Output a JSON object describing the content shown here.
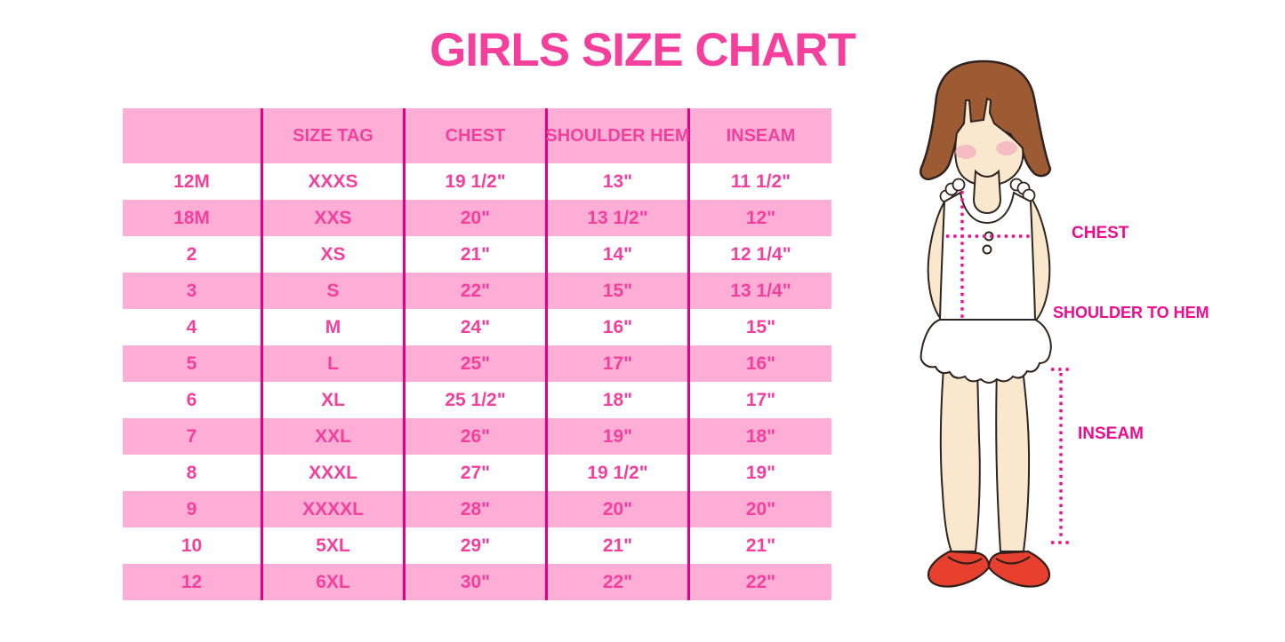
{
  "title": "GIRLS SIZE CHART",
  "theme": {
    "accent_pink": "#F4409C",
    "row_pink": "#FCAED7",
    "line_magenta": "#E5007E",
    "label_magenta": "#EC0D8E",
    "hair_brown": "#9C5B33",
    "skin_tone": "#FAE8CE",
    "blush_pink": "#F2AFBC",
    "shoe_red": "#E8402F",
    "garment_white": "#FFFFFF"
  },
  "size_table": {
    "columns": [
      "",
      "SIZE TAG",
      "CHEST",
      "SHOULDER HEM",
      "INSEAM"
    ],
    "rows": [
      [
        "12M",
        "XXXS",
        "19 1/2\"",
        "13\"",
        "11 1/2\""
      ],
      [
        "18M",
        "XXS",
        "20\"",
        "13 1/2\"",
        "12\""
      ],
      [
        "2",
        "XS",
        "21\"",
        "14\"",
        "12 1/4\""
      ],
      [
        "3",
        "S",
        "22\"",
        "15\"",
        "13 1/4\""
      ],
      [
        "4",
        "M",
        "24\"",
        "16\"",
        "15\""
      ],
      [
        "5",
        "L",
        "25\"",
        "17\"",
        "16\""
      ],
      [
        "6",
        "XL",
        "25 1/2\"",
        "18\"",
        "17\""
      ],
      [
        "7",
        "XXL",
        "26\"",
        "19\"",
        "18\""
      ],
      [
        "8",
        "XXXL",
        "27\"",
        "19 1/2\"",
        "19\""
      ],
      [
        "9",
        "XXXXL",
        "28\"",
        "20\"",
        "20\""
      ],
      [
        "10",
        "5XL",
        "29\"",
        "21\"",
        "21\""
      ],
      [
        "12",
        "6XL",
        "30\"",
        "22\"",
        "22\""
      ]
    ]
  },
  "measurement_labels": {
    "chest": "CHEST",
    "shoulder_to_hem": "SHOULDER TO HEM",
    "inseam": "INSEAM"
  }
}
